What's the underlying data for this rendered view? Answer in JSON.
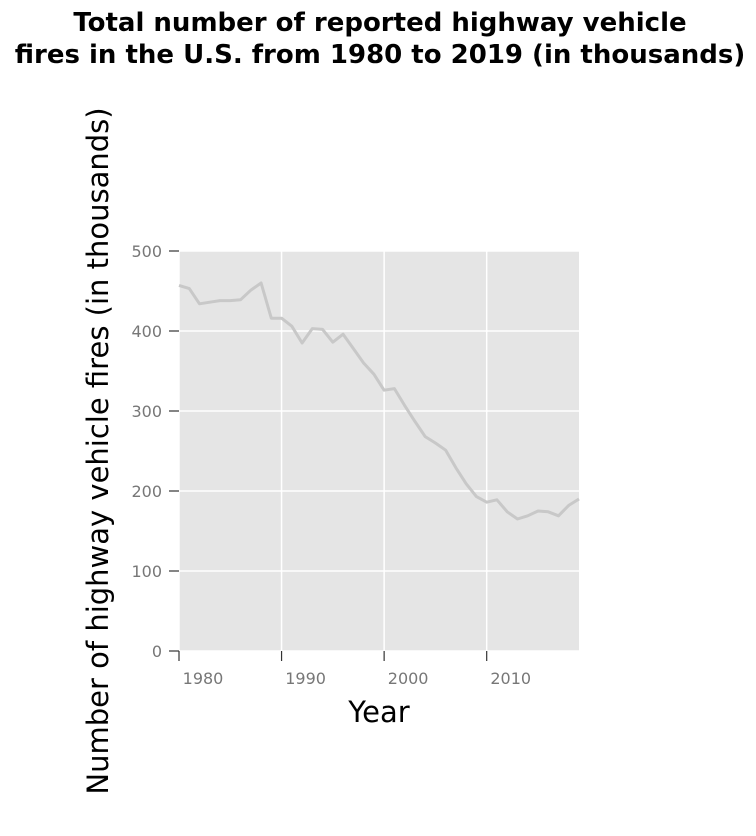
{
  "chart_data": {
    "type": "line",
    "title_lines": [
      "Total number of reported highway vehicle",
      "fires in the U.S. from 1980 to 2019 (in thousands)"
    ],
    "xlabel": "Year",
    "ylabel": "Number of highway vehicle fires (in thousands)",
    "xlim": [
      1980,
      2019
    ],
    "ylim": [
      0,
      500
    ],
    "xticks": [
      1980,
      1990,
      2000,
      2010
    ],
    "yticks": [
      0,
      100,
      200,
      300,
      400,
      500
    ],
    "grid": true,
    "line_color": "#c8c8c8",
    "panel_color": "#e5e5e5",
    "series": [
      {
        "x": [
          1980,
          1981,
          1982,
          1983,
          1984,
          1985,
          1986,
          1987,
          1988,
          1989,
          1990,
          1991,
          1992,
          1993,
          1994,
          1995,
          1996,
          1997,
          1998,
          1999,
          2000,
          2001,
          2002,
          2003,
          2004,
          2005,
          2006,
          2007,
          2008,
          2009,
          2010,
          2011,
          2012,
          2013,
          2014,
          2015,
          2016,
          2017,
          2018,
          2019
        ],
        "values": [
          457,
          453,
          434,
          436,
          438,
          438,
          439,
          451,
          460,
          416,
          416,
          406,
          385,
          403,
          402,
          386,
          396,
          378,
          360,
          346,
          326,
          328,
          307,
          287,
          268,
          260,
          251,
          229,
          209,
          193,
          186,
          189,
          174,
          165,
          169,
          175,
          174,
          169,
          182,
          190
        ]
      }
    ]
  }
}
